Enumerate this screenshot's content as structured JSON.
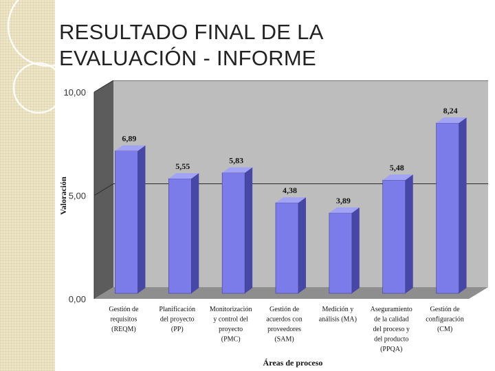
{
  "slide": {
    "title_line1": "RESULTADO FINAL DE LA",
    "title_line2": "EVALUACIÓN - INFORME"
  },
  "colors": {
    "bar_front": "#7b7bea",
    "bar_side": "#4747a6",
    "bar_top": "#a3a3f3",
    "back_wall": "#bdbdbd",
    "side_wall": "#5c5c5c",
    "floor": "#8e8e8e"
  },
  "chart_data": {
    "type": "bar",
    "title": "",
    "xlabel": "Áreas de proceso",
    "ylabel": "Valoración",
    "ylim": [
      0,
      10
    ],
    "yticks": [
      {
        "value": 0,
        "label": "0,00"
      },
      {
        "value": 5,
        "label": "5,00"
      },
      {
        "value": 10,
        "label": "10,00"
      }
    ],
    "categories": [
      [
        "Gestión de",
        "requisitos",
        "(REQM)"
      ],
      [
        "Planificación",
        "del proyecto",
        "(PP)"
      ],
      [
        "Monitorización",
        "y control del",
        "proyecto",
        "(PMC)"
      ],
      [
        "Gestión de",
        "acuerdos con",
        "proveedores",
        "(SAM)"
      ],
      [
        "Medición y",
        "análisis (MA)"
      ],
      [
        "Aseguramiento",
        "de la calidad",
        "del proceso y",
        "del producto",
        "(PPQA)"
      ],
      [
        "Gestión de",
        "configuración",
        "(CM)"
      ]
    ],
    "values": [
      6.89,
      5.55,
      5.83,
      4.38,
      3.89,
      5.48,
      8.24
    ],
    "value_labels": [
      "6,89",
      "5,55",
      "5,83",
      "4,38",
      "3,89",
      "5,48",
      "8,24"
    ],
    "grid": true,
    "legend": "none"
  }
}
